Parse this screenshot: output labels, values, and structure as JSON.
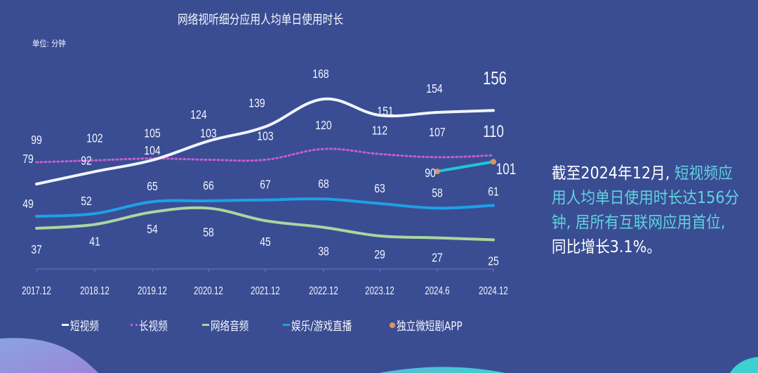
{
  "title": "网络视听细分应用人均单日使用时长",
  "unit_label": "单位: 分钟",
  "chart_data": {
    "type": "line",
    "title": "网络视听细分应用人均单日使用时长",
    "ylabel": "单位: 分钟",
    "xlabel": "",
    "categories": [
      "2017.12",
      "2018.12",
      "2019.12",
      "2020.12",
      "2021.12",
      "2022.12",
      "2023.12",
      "2024.6",
      "2024.12"
    ],
    "series": [
      {
        "name": "短视频",
        "color": "#f2f4ff",
        "style": "solid",
        "values": [
          79,
          92,
          104,
          124,
          139,
          168,
          151,
          154,
          156
        ]
      },
      {
        "name": "长视频",
        "color": "#c45cd6",
        "style": "dotted",
        "values": [
          99,
          102,
          105,
          103,
          103,
          120,
          112,
          107,
          110
        ]
      },
      {
        "name": "网络音频",
        "color": "#a9d6a0",
        "style": "solid",
        "values": [
          37,
          41,
          54,
          58,
          45,
          38,
          29,
          27,
          25
        ]
      },
      {
        "name": "娱乐/游戏直播",
        "color": "#1fa0e8",
        "style": "solid",
        "values": [
          49,
          52,
          65,
          66,
          67,
          68,
          63,
          58,
          61
        ]
      },
      {
        "name": "独立微短剧APP",
        "color": "#22c4d8",
        "marker_color": "#e0945a",
        "style": "solid",
        "values": [
          null,
          null,
          null,
          null,
          null,
          null,
          null,
          90,
          101
        ]
      }
    ],
    "grid": false,
    "legend_position": "bottom"
  },
  "legend": [
    {
      "label": "短视频",
      "color": "#f2f4ff"
    },
    {
      "label": "长视频",
      "color": "#c45cd6"
    },
    {
      "label": "网络音频",
      "color": "#a9d6a0"
    },
    {
      "label": "娱乐/游戏直播",
      "color": "#1fa0e8"
    },
    {
      "label": "独立微短剧APP",
      "color": "#e0945a"
    }
  ],
  "callout": {
    "line1_plain": "截至2024年12月, ",
    "line1_highlight": "短视频应",
    "line2_highlight": "用人均单日使用时长达156分",
    "line3_highlight": "钟, 居所有互联网应用首位,",
    "line4_plain": "同比增长3.1%。"
  },
  "colors": {
    "background": "#3a4d92",
    "highlight": "#5fd3e0"
  }
}
